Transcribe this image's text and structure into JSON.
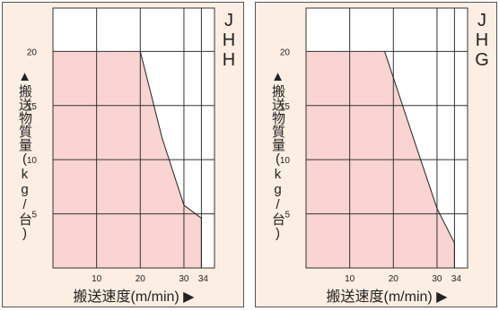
{
  "ylabel": "▲搬送物質量(kg/台)",
  "xlabel": "搬送速度(m/min) ▶",
  "colors": {
    "fill": "#f9d4d2",
    "panel_bg": "#fdeee3",
    "grid": "#333333",
    "curve": "#222222"
  },
  "chart_data": [
    {
      "type": "area",
      "code": [
        "J",
        "H",
        "H"
      ],
      "xlabel": "搬送速度(m/min) ▶",
      "ylabel": "▲搬送物質量(kg/台)",
      "x_ticks": [
        10,
        20,
        30,
        34
      ],
      "y_ticks": [
        5,
        10,
        15,
        20
      ],
      "xlim": [
        0,
        37
      ],
      "ylim": [
        0,
        24
      ],
      "grid": true,
      "x": [
        0,
        20,
        25,
        30,
        34
      ],
      "y": [
        20,
        20,
        12,
        5.8,
        4.6
      ]
    },
    {
      "type": "area",
      "code": [
        "J",
        "H",
        "G"
      ],
      "xlabel": "搬送速度(m/min) ▶",
      "ylabel": "▲搬送物質量(kg/台)",
      "x_ticks": [
        10,
        20,
        30,
        34
      ],
      "y_ticks": [
        5,
        10,
        15,
        20
      ],
      "xlim": [
        0,
        37
      ],
      "ylim": [
        0,
        24
      ],
      "grid": true,
      "x": [
        0,
        18,
        25,
        30,
        34
      ],
      "y": [
        20,
        20,
        11.5,
        5.5,
        2.3
      ]
    }
  ]
}
